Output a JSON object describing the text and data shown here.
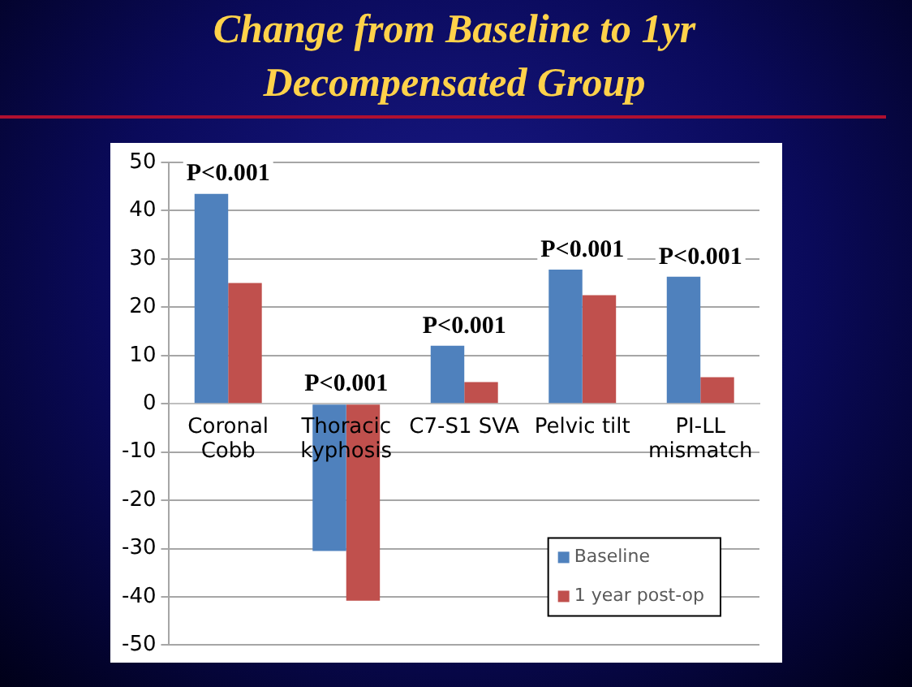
{
  "chart_data": {
    "type": "bar",
    "title": "Change from Baseline to 1yr Decompensated Group",
    "categories": [
      "Coronal Cobb",
      "Thoracic kyphosis",
      "C7-S1 SVA",
      "Pelvic tilt",
      "PI-LL mismatch"
    ],
    "series": [
      {
        "name": "Baseline",
        "color": "#4f81bd",
        "values": [
          43.5,
          -30.5,
          12,
          27.8,
          26.3
        ]
      },
      {
        "name": "1 year post-op",
        "color": "#c0504d",
        "values": [
          25,
          -40.8,
          4.5,
          22.5,
          5.5
        ]
      }
    ],
    "ylim": [
      -50,
      50
    ],
    "yticks": [
      -50,
      -40,
      -30,
      -20,
      -10,
      0,
      10,
      20,
      30,
      40,
      50
    ],
    "grid": "y",
    "legend": "bottom right",
    "annotations": [
      "P<0.001",
      "P<0.001",
      "P<0.001",
      "P<0.001",
      "P<0.001"
    ]
  }
}
